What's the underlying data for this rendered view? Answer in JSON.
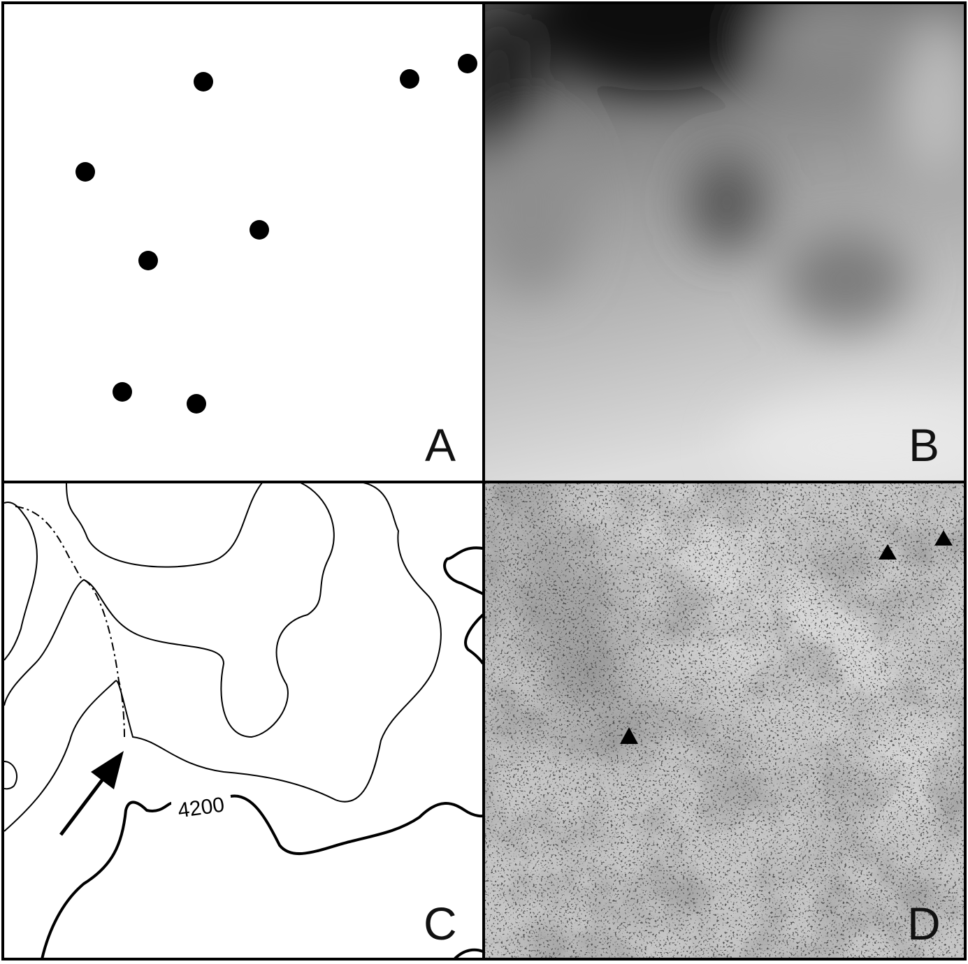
{
  "panels": [
    {
      "label": "A"
    },
    {
      "label": "B"
    },
    {
      "label": "C",
      "contour_label": "4200"
    },
    {
      "label": "D"
    }
  ]
}
